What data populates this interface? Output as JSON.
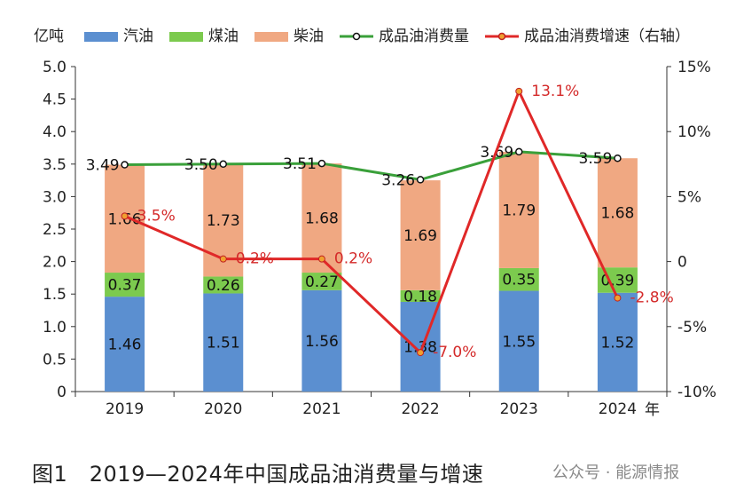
{
  "chart_data": {
    "type": "bar",
    "stacked": true,
    "categories": [
      "2019",
      "2020",
      "2021",
      "2022",
      "2023",
      "2024"
    ],
    "series": [
      {
        "name": "汽油",
        "color": "#5b8fd0",
        "values": [
          1.46,
          1.51,
          1.56,
          1.38,
          1.55,
          1.52
        ]
      },
      {
        "name": "煤油",
        "color": "#7cca4e",
        "values": [
          0.37,
          0.26,
          0.27,
          0.18,
          0.35,
          0.39
        ]
      },
      {
        "name": "柴油",
        "color": "#f0a882",
        "values": [
          1.66,
          1.73,
          1.68,
          1.69,
          1.79,
          1.68
        ]
      }
    ],
    "lines": [
      {
        "name": "成品油消费量",
        "color": "#3aa03a",
        "axis": "left",
        "values": [
          3.49,
          3.5,
          3.51,
          3.26,
          3.69,
          3.59
        ],
        "labels": [
          "3.49",
          "3.50",
          "3.51",
          "3.26",
          "3.69",
          "3.59"
        ]
      },
      {
        "name": "成品油消费增速（右轴）",
        "color": "#e02828",
        "axis": "right",
        "values": [
          3.5,
          0.2,
          0.2,
          -7.0,
          13.1,
          -2.8
        ],
        "labels": [
          "3.5%",
          "0.2%",
          "0.2%",
          "-7.0%",
          "13.1%",
          "-2.8%"
        ]
      }
    ],
    "ylabel": "亿吨",
    "xlabel": "年",
    "ylim": [
      0,
      5.0
    ],
    "yticks": [
      "5.0",
      "4.5",
      "4.0",
      "3.5",
      "3.0",
      "2.5",
      "2.0",
      "1.5",
      "1.0",
      "0.5",
      "0"
    ],
    "y2lim": [
      -10,
      15
    ],
    "y2ticks": [
      "15%",
      "10%",
      "5%",
      "0",
      "-5%",
      "-10%"
    ]
  },
  "caption": "图1　2019—2024年中国成品油消费量与增速",
  "watermark": "公众号 · 能源情报"
}
